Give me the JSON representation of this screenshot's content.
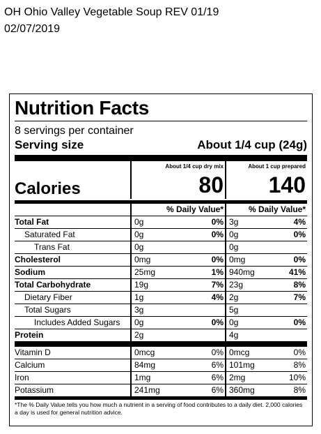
{
  "header": {
    "line1": "OH Ohio Valley Vegetable Soup REV 01/19",
    "line2": "02/07/2019"
  },
  "label": {
    "title": "Nutrition Facts",
    "servings": "8 servings per container",
    "serving_size_label": "Serving size",
    "serving_size_value": "About 1/4 cup (24g)",
    "col1_head": "About 1/4 cup dry mix",
    "col2_head": "About 1 cup prepared",
    "calories_label": "Calories",
    "calories_col1": "80",
    "calories_col2": "140",
    "dv_col1": "% Daily Value*",
    "dv_col2": "% Daily Value*",
    "nutrients": [
      {
        "name": "Total Fat",
        "a1": "0g",
        "p1": "0%",
        "a2": "3g",
        "p2": "4%"
      },
      {
        "name": "Saturated Fat",
        "a1": "0g",
        "p1": "0%",
        "a2": "0g",
        "p2": "0%"
      },
      {
        "name": "Trans Fat",
        "a1": "0g",
        "p1": "",
        "a2": "0g",
        "p2": ""
      },
      {
        "name": "Cholesterol",
        "a1": "0mg",
        "p1": "0%",
        "a2": "0mg",
        "p2": "0%"
      },
      {
        "name": "Sodium",
        "a1": "25mg",
        "p1": "1%",
        "a2": "940mg",
        "p2": "41%"
      },
      {
        "name": "Total Carbohydrate",
        "a1": "19g",
        "p1": "7%",
        "a2": "23g",
        "p2": "8%"
      },
      {
        "name": "Dietary Fiber",
        "a1": "1g",
        "p1": "4%",
        "a2": "2g",
        "p2": "7%"
      },
      {
        "name": "Total Sugars",
        "a1": "3g",
        "p1": "",
        "a2": "5g",
        "p2": ""
      },
      {
        "name": "Includes Added Sugars",
        "a1": "0g",
        "p1": "0%",
        "a2": "0g",
        "p2": "0%"
      },
      {
        "name": "Protein",
        "a1": "2g",
        "p1": "",
        "a2": "4g",
        "p2": ""
      }
    ],
    "vitamins": [
      {
        "name": "Vitamin D",
        "a1": "0mcg",
        "p1": "0%",
        "a2": "0mcg",
        "p2": "0%"
      },
      {
        "name": "Calcium",
        "a1": "84mg",
        "p1": "6%",
        "a2": "101mg",
        "p2": "8%"
      },
      {
        "name": "Iron",
        "a1": "1mg",
        "p1": "6%",
        "a2": "2mg",
        "p2": "10%"
      },
      {
        "name": "Potassium",
        "a1": "241mg",
        "p1": "6%",
        "a2": "360mg",
        "p2": "8%"
      }
    ],
    "footnote": "*The % Daily Value tells you how much a nutrient in a serving of food contributes to a daily diet. 2,000 calories a day is used for general nutrition advice."
  }
}
